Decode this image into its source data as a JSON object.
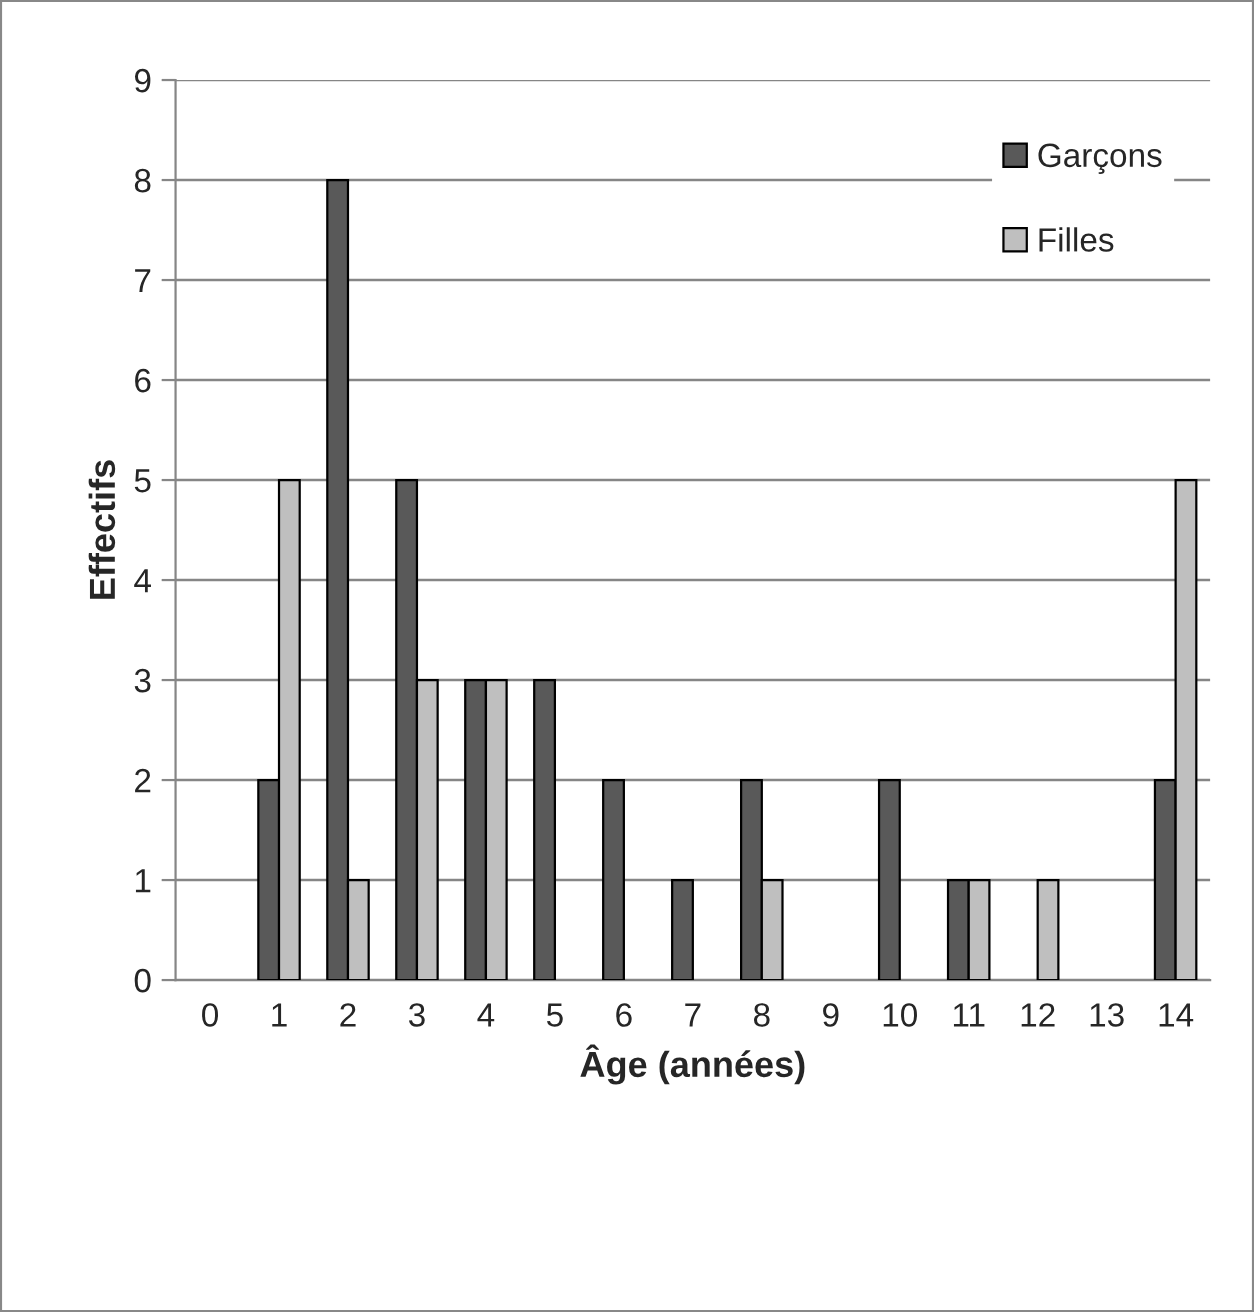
{
  "chart_data": {
    "type": "bar",
    "xlabel": "Âge (années)",
    "ylabel": "Effectifs",
    "categories": [
      "0",
      "1",
      "2",
      "3",
      "4",
      "5",
      "6",
      "7",
      "8",
      "9",
      "10",
      "11",
      "12",
      "13",
      "14"
    ],
    "series": [
      {
        "name": "Garçons",
        "color": "#595959",
        "values": [
          0,
          2,
          8,
          5,
          3,
          3,
          2,
          1,
          2,
          0,
          2,
          1,
          0,
          0,
          2
        ]
      },
      {
        "name": "Filles",
        "color": "#bfbfbf",
        "values": [
          0,
          5,
          1,
          3,
          3,
          0,
          0,
          0,
          1,
          0,
          0,
          1,
          1,
          0,
          5
        ]
      }
    ],
    "ylim": [
      0,
      9
    ],
    "yticks": [
      0,
      1,
      2,
      3,
      4,
      5,
      6,
      7,
      8,
      9
    ],
    "grid": "y",
    "legend": "top right"
  }
}
